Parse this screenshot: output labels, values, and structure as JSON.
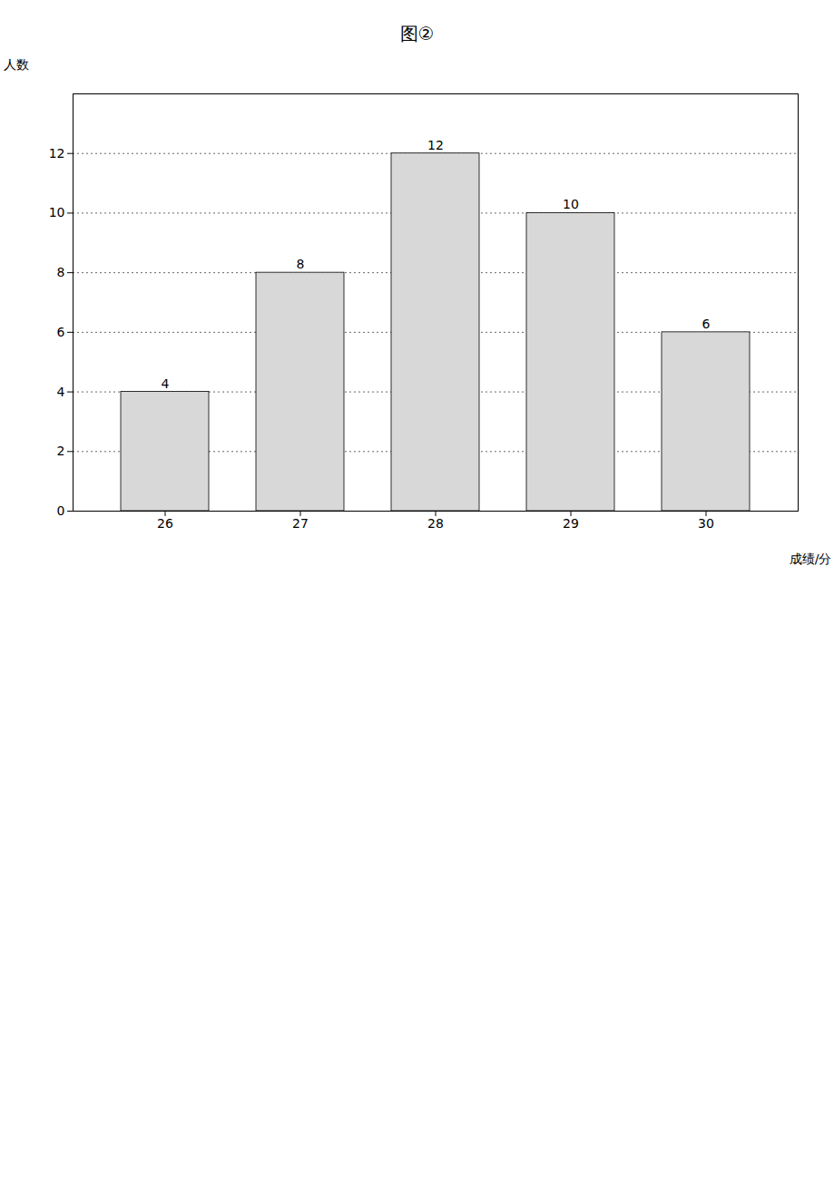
{
  "chart_data": {
    "type": "bar",
    "title": "图②",
    "categories": [
      "26",
      "27",
      "28",
      "29",
      "30"
    ],
    "values": [
      4,
      8,
      12,
      10,
      6
    ],
    "color": "#d8d8d8",
    "x_label": "成绩/分",
    "y_label": "人数",
    "ylim": [
      0,
      14
    ],
    "yticks": [
      0,
      2,
      4,
      6,
      8,
      10,
      12
    ],
    "grid": true,
    "data_labels": true
  }
}
